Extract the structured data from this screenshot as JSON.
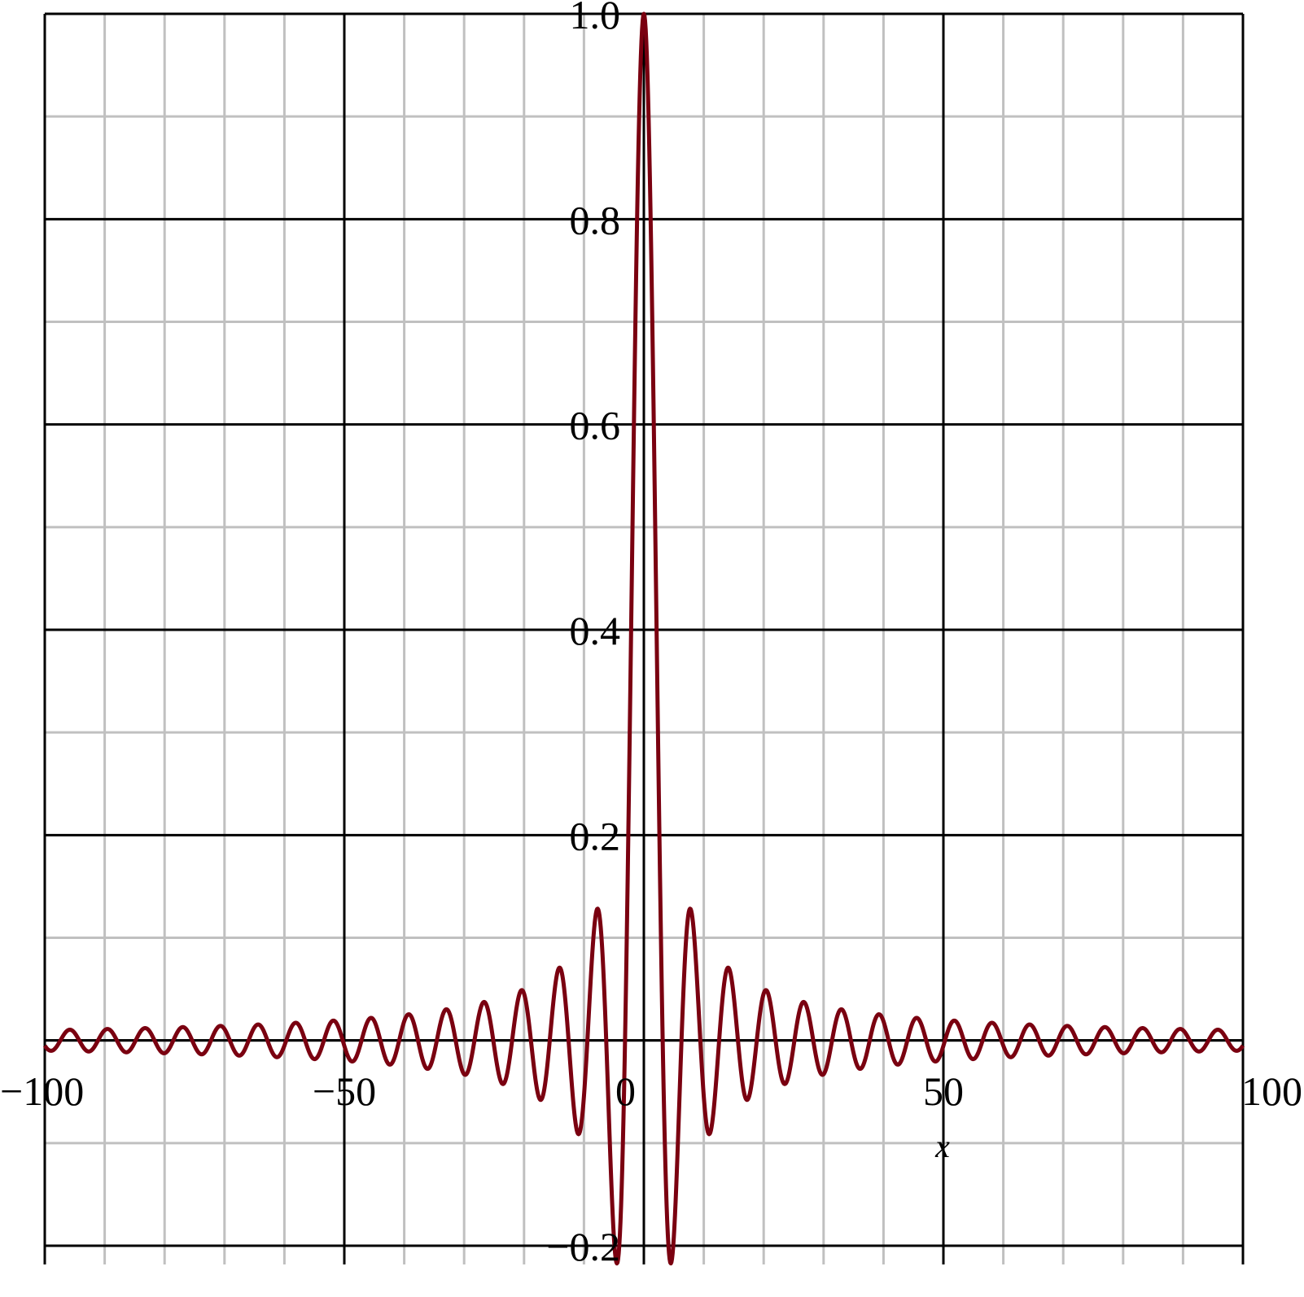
{
  "chart_data": {
    "type": "line",
    "title": "",
    "xlabel": "x",
    "ylabel": "",
    "xlim": [
      -100,
      100
    ],
    "ylim": [
      -0.2,
      1.0
    ],
    "x_ticks": [
      -100,
      -50,
      0,
      50,
      100
    ],
    "x_tick_labels": [
      "−100",
      "−50",
      "0",
      "50",
      "100"
    ],
    "y_ticks": [
      1.0,
      0.8,
      0.6,
      0.4,
      0.2,
      -0.2
    ],
    "y_tick_labels": [
      "1.0",
      "0.8",
      "0.6",
      "0.4",
      "0.2",
      "−0.2"
    ],
    "x_minor_step": 10,
    "y_minor_step": 0.1,
    "grid": true,
    "series": [
      {
        "color": "#7a0010",
        "shape": "sin(x)/x",
        "key_points": [
          {
            "x": -7.73,
            "y": 0.128
          },
          {
            "x": -4.49,
            "y": -0.217
          },
          {
            "x": 0,
            "y": 1.0
          },
          {
            "x": 4.49,
            "y": -0.217
          },
          {
            "x": 7.73,
            "y": 0.128
          }
        ]
      }
    ]
  }
}
